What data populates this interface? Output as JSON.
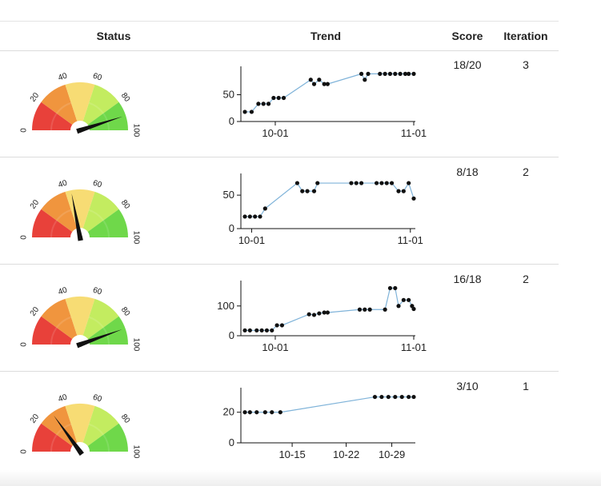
{
  "header": {
    "status": "Status",
    "trend": "Trend",
    "score": "Score",
    "iteration": "Iteration"
  },
  "gauge": {
    "ticks": [
      "0",
      "20",
      "40",
      "60",
      "80",
      "100"
    ],
    "colors": {
      "red": "#e8413a",
      "orange": "#f0953e",
      "yellow": "#f7dc74",
      "light_green": "#c3ec60",
      "green": "#6fd84a",
      "needle": "#111111"
    }
  },
  "chart_colors": {
    "line": "#7fb3d9",
    "point": "#111111",
    "axis": "#111111"
  },
  "rows": [
    {
      "score": "18/20",
      "iteration": "3",
      "gauge_value": 90,
      "trend": {
        "type": "line",
        "x_ticks": [
          {
            "label": "10-01",
            "pos": 0.18
          },
          {
            "label": "11-01",
            "pos": 1.0
          }
        ],
        "y_ticks": [
          "0",
          "50"
        ],
        "ylim": [
          0,
          100
        ],
        "values": [
          18,
          18,
          33,
          33,
          33,
          44,
          44,
          44,
          78,
          70,
          78,
          70,
          70,
          89,
          78,
          89,
          89,
          89,
          89,
          89,
          89,
          89,
          89,
          89
        ],
        "x": [
          0,
          0.04,
          0.08,
          0.11,
          0.14,
          0.17,
          0.2,
          0.23,
          0.39,
          0.41,
          0.44,
          0.47,
          0.49,
          0.69,
          0.71,
          0.73,
          0.8,
          0.83,
          0.86,
          0.89,
          0.92,
          0.95,
          0.97,
          1.0
        ]
      }
    },
    {
      "score": "8/18",
      "iteration": "2",
      "gauge_value": 44,
      "trend": {
        "type": "line",
        "x_ticks": [
          {
            "label": "10-01",
            "pos": 0.04
          },
          {
            "label": "11-01",
            "pos": 0.98
          }
        ],
        "y_ticks": [
          "0",
          "50"
        ],
        "ylim": [
          0,
          80
        ],
        "values": [
          18,
          18,
          18,
          18,
          30,
          68,
          56,
          56,
          56,
          68,
          68,
          68,
          68,
          68,
          68,
          68,
          68,
          56,
          56,
          68,
          45
        ],
        "x": [
          0,
          0.03,
          0.06,
          0.09,
          0.12,
          0.31,
          0.34,
          0.37,
          0.41,
          0.43,
          0.63,
          0.66,
          0.69,
          0.78,
          0.81,
          0.84,
          0.87,
          0.91,
          0.94,
          0.97,
          1.0
        ]
      }
    },
    {
      "score": "16/18",
      "iteration": "2",
      "gauge_value": 89,
      "trend": {
        "type": "line",
        "x_ticks": [
          {
            "label": "10-01",
            "pos": 0.18
          },
          {
            "label": "11-01",
            "pos": 1.0
          }
        ],
        "y_ticks": [
          "0",
          "100"
        ],
        "ylim": [
          0,
          180
        ],
        "values": [
          18,
          18,
          18,
          18,
          18,
          18,
          35,
          35,
          72,
          70,
          75,
          78,
          78,
          88,
          88,
          88,
          88,
          160,
          160,
          100,
          120,
          120,
          100,
          90
        ],
        "x": [
          0,
          0.03,
          0.07,
          0.1,
          0.13,
          0.16,
          0.19,
          0.22,
          0.38,
          0.41,
          0.44,
          0.47,
          0.49,
          0.68,
          0.71,
          0.74,
          0.83,
          0.86,
          0.89,
          0.91,
          0.94,
          0.97,
          0.99,
          1.0
        ]
      }
    },
    {
      "score": "3/10",
      "iteration": "1",
      "gauge_value": 30,
      "trend": {
        "type": "line",
        "x_ticks": [
          {
            "label": "10-15",
            "pos": 0.28
          },
          {
            "label": "10-22",
            "pos": 0.6
          },
          {
            "label": "10-29",
            "pos": 0.87
          }
        ],
        "y_ticks": [
          "0",
          "20"
        ],
        "ylim": [
          0,
          35
        ],
        "values": [
          20,
          20,
          20,
          20,
          20,
          20,
          30,
          30,
          30,
          30,
          30,
          30,
          30
        ],
        "x": [
          0,
          0.03,
          0.07,
          0.12,
          0.16,
          0.21,
          0.77,
          0.81,
          0.85,
          0.89,
          0.93,
          0.97,
          1.0
        ]
      }
    }
  ]
}
